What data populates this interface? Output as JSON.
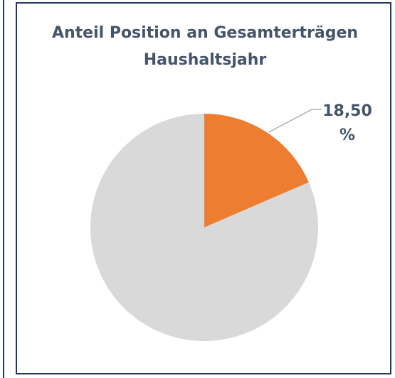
{
  "chart_data": {
    "type": "pie",
    "title": "Anteil Position an Gesamterträgen Haushaltsjahr",
    "values": [
      18.5,
      81.5
    ],
    "value_labels": [
      "18,50 %",
      null
    ],
    "colors": [
      "#ed7d31",
      "#d9d9d9"
    ]
  }
}
